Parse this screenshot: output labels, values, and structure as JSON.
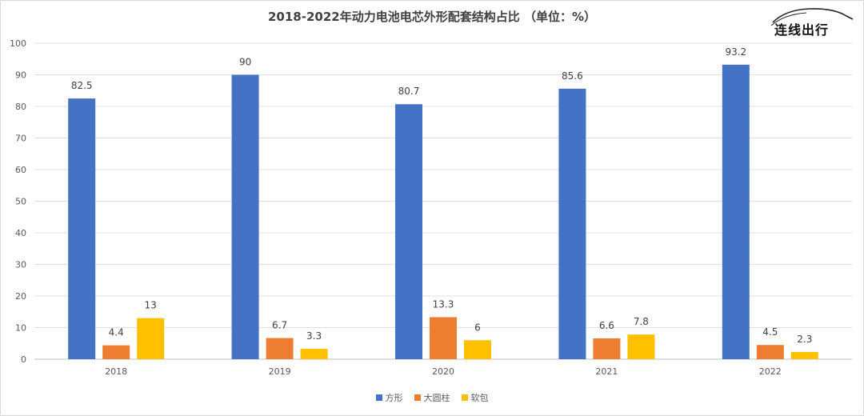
{
  "brand": {
    "name": "连线出行"
  },
  "chart_data": {
    "type": "bar",
    "title": "2018-2022年动力电池电芯外形配套结构占比 （单位：%）",
    "categories": [
      "2018",
      "2019",
      "2020",
      "2021",
      "2022"
    ],
    "series": [
      {
        "name": "方形",
        "color": "#4472C4",
        "values": [
          82.5,
          90,
          80.7,
          85.6,
          93.2
        ]
      },
      {
        "name": "大圆柱",
        "color": "#ED7D31",
        "values": [
          4.4,
          6.7,
          13.3,
          6.6,
          4.5
        ]
      },
      {
        "name": "软包",
        "color": "#FFC000",
        "values": [
          13,
          3.3,
          6,
          7.8,
          2.3
        ]
      }
    ],
    "ylim": [
      0,
      100
    ],
    "yticks": [
      0,
      10,
      20,
      30,
      40,
      50,
      60,
      70,
      80,
      90,
      100
    ],
    "grid": true,
    "legend": "bottom"
  }
}
